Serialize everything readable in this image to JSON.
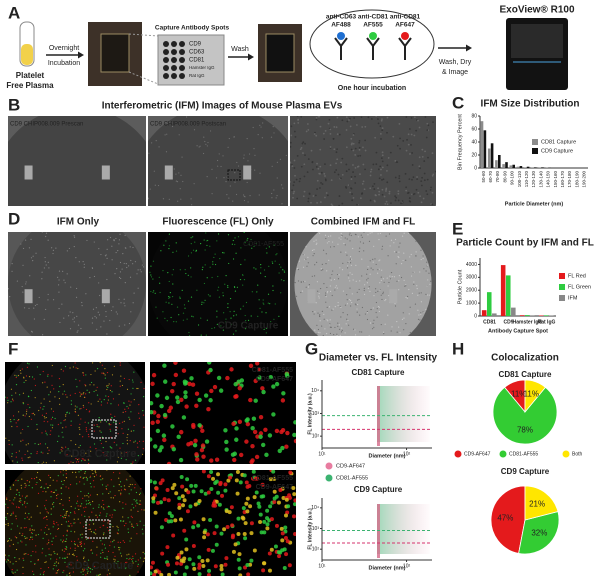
{
  "panel_labels": [
    "A",
    "B",
    "C",
    "D",
    "E",
    "F",
    "G",
    "H"
  ],
  "panel_a": {
    "sample": [
      "Platelet",
      "Free Plasma"
    ],
    "step1": [
      "Overnight",
      "Incubation"
    ],
    "spots_title": "Capture Antibody Spots",
    "spots": [
      "CD9",
      "CD63",
      "CD81",
      "Hamster IgG",
      "Rat IgG"
    ],
    "step2": "Wash",
    "antibodies": [
      [
        "anti-CD63",
        "AF488"
      ],
      [
        "anti-CD81",
        "AF555"
      ],
      [
        "anti-CD81",
        "AF647"
      ]
    ],
    "incubation": "One hour incubation",
    "step3": [
      "Wash, Dry",
      "& Image"
    ],
    "instrument": "ExoView® R100"
  },
  "panel_b": {
    "title": "Interferometric (IFM) Images of Mouse Plasma EVs",
    "image_labels": [
      "CD9 CHIP008.009 Prescan",
      "CD9 CHIP008.009 Postscan"
    ]
  },
  "panel_d": {
    "titles": [
      "IFM Only",
      "Fluorescence (FL) Only",
      "Combined IFM and FL"
    ],
    "channel": "CD81-AF555",
    "capture": "CD9 Capture"
  },
  "panel_f": {
    "channels": [
      "CD81-AF555",
      "CD9-AF647"
    ],
    "captures": [
      "CD81 Capture",
      "CD9 Capture"
    ]
  },
  "chart_data": [
    {
      "type": "bar",
      "title": "IFM Size Distribution",
      "x_label": "Particle Diameter (nm)",
      "y_label": "Bin Frequency Percent",
      "categories": [
        "50-60",
        "60-70",
        "70-80",
        "80-90",
        "90-100",
        "100-110",
        "110-120",
        "120-130",
        "130-140",
        "140-150",
        "150-160",
        "160-170",
        "170-180",
        "180-190",
        "190-200"
      ],
      "series": [
        {
          "name": "CD81 Capture",
          "color": "#8c8c8c",
          "values": [
            72,
            30,
            12,
            6,
            4,
            2,
            1,
            1,
            0.5,
            0.5,
            0,
            0,
            0,
            0,
            0
          ]
        },
        {
          "name": "CD9 Capture",
          "color": "#111111",
          "values": [
            58,
            38,
            20,
            9,
            5,
            3,
            2,
            1,
            1,
            0.5,
            0,
            0,
            0,
            0,
            0
          ]
        }
      ],
      "ylim": [
        0,
        80
      ],
      "yticks": [
        0,
        20,
        40,
        60,
        80
      ]
    },
    {
      "type": "bar",
      "title": "Particle Count by IFM and FL",
      "x_label": "Antibody Capture Spot",
      "y_label": "Particle Count",
      "categories": [
        "CD81",
        "CD9",
        "Hamster IgG",
        "Rat IgG"
      ],
      "series": [
        {
          "name": "FL Red",
          "color": "#e41a1c",
          "values": [
            450,
            3950,
            60,
            40
          ]
        },
        {
          "name": "FL Green",
          "color": "#2ecc40",
          "values": [
            1850,
            3150,
            70,
            50
          ]
        },
        {
          "name": "IFM",
          "color": "#888888",
          "values": [
            200,
            650,
            50,
            30
          ]
        }
      ],
      "ylim": [
        0,
        4500
      ],
      "yticks": [
        0,
        1000,
        2000,
        3000,
        4000
      ]
    },
    {
      "type": "scatter",
      "title": "Diameter vs. FL Intensity",
      "subtitle": "CD81 Capture",
      "x_label": "Diameter (nm)",
      "y_label": "FL Intensity (a.u.)",
      "log_x": true,
      "log_y": true,
      "xlim": [
        10,
        200
      ],
      "xticks": [
        {
          "value": 10,
          "label": "10¹"
        },
        {
          "value": 100,
          "label": "10²"
        }
      ],
      "ylim": [
        30,
        30000
      ],
      "yticks": [
        {
          "value": 100,
          "label": "10²"
        },
        {
          "value": 1000,
          "label": "10³"
        },
        {
          "value": 10000,
          "label": "10⁴"
        }
      ],
      "threshold_lines": [
        {
          "value": 800,
          "color": "#3cb371"
        },
        {
          "value": 200,
          "color": "#d6336c"
        }
      ],
      "legend": [
        {
          "name": "CD9-AF647",
          "color": "#e87ca0"
        },
        {
          "name": "CD81-AF555",
          "color": "#3cb371"
        }
      ]
    },
    {
      "type": "scatter",
      "subtitle": "CD9 Capture",
      "x_label": "Diameter (nm)",
      "y_label": "FL Intensity (a.u.)",
      "log_x": true,
      "log_y": true,
      "xlim": [
        10,
        200
      ],
      "xticks": [
        {
          "value": 10,
          "label": "10¹"
        },
        {
          "value": 100,
          "label": "10²"
        }
      ],
      "ylim": [
        30,
        30000
      ],
      "yticks": [
        {
          "value": 100,
          "label": "10²"
        },
        {
          "value": 1000,
          "label": "10³"
        },
        {
          "value": 10000,
          "label": "10⁴"
        }
      ],
      "threshold_lines": [
        {
          "value": 800,
          "color": "#3cb371"
        },
        {
          "value": 200,
          "color": "#d6336c"
        }
      ]
    },
    {
      "type": "pie",
      "title": "Colocalization",
      "subtitle": "CD81 Capture",
      "categories": [
        "CD9-AF647",
        "CD81-AF555",
        "Both"
      ],
      "colors": [
        "#e41a1c",
        "#33cc33",
        "#ffe600"
      ],
      "values": [
        11,
        78,
        11
      ],
      "value_labels": [
        "11%",
        "78%",
        "11%"
      ]
    },
    {
      "type": "pie",
      "subtitle": "CD9 Capture",
      "colors": [
        "#e41a1c",
        "#33cc33",
        "#ffe600"
      ],
      "values": [
        47,
        32,
        21
      ],
      "value_labels": [
        "47%",
        "32%",
        "21%"
      ]
    }
  ]
}
